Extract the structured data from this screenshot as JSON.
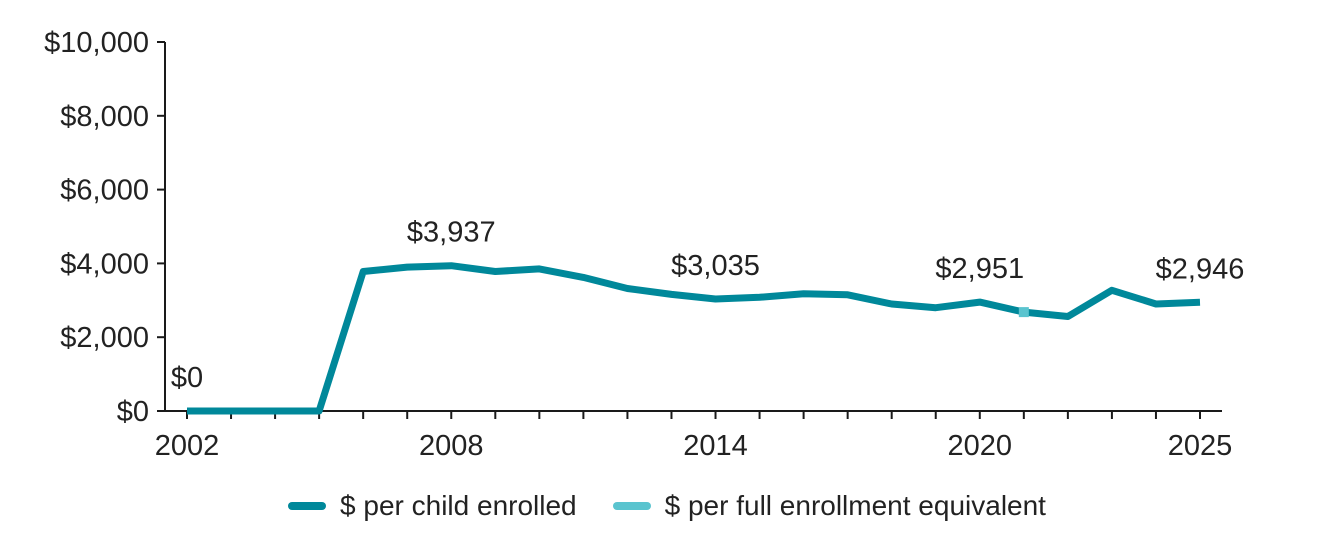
{
  "chart_data": {
    "type": "line",
    "title": "",
    "xlabel": "",
    "ylabel": "",
    "ylim": [
      0,
      10000
    ],
    "xlim": [
      2002,
      2025
    ],
    "y_ticks": [
      {
        "value": 0,
        "label": "$0"
      },
      {
        "value": 2000,
        "label": "$2,000"
      },
      {
        "value": 4000,
        "label": "$4,000"
      },
      {
        "value": 6000,
        "label": "$6,000"
      },
      {
        "value": 8000,
        "label": "$8,000"
      },
      {
        "value": 10000,
        "label": "$10,000"
      }
    ],
    "x_ticks": [
      {
        "value": 2002,
        "label": "2002"
      },
      {
        "value": 2008,
        "label": "2008"
      },
      {
        "value": 2014,
        "label": "2014"
      },
      {
        "value": 2020,
        "label": "2020"
      },
      {
        "value": 2025,
        "label": "2025"
      }
    ],
    "series": [
      {
        "name": "$ per child enrolled",
        "color": "#00889a",
        "x": [
          2002,
          2003,
          2004,
          2005,
          2006,
          2007,
          2008,
          2009,
          2010,
          2011,
          2012,
          2013,
          2014,
          2015,
          2016,
          2017,
          2018,
          2019,
          2020,
          2021,
          2022,
          2023,
          2024,
          2025
        ],
        "values": [
          0,
          0,
          0,
          0,
          3780,
          3900,
          3937,
          3780,
          3850,
          3620,
          3320,
          3160,
          3035,
          3080,
          3180,
          3150,
          2900,
          2800,
          2951,
          2680,
          2560,
          3270,
          2900,
          2946
        ]
      },
      {
        "name": "$ per full enrollment equivalent",
        "color": "#5ac4cf",
        "x": [
          2021
        ],
        "values": [
          2680
        ]
      }
    ],
    "annotations": [
      {
        "x": 2002,
        "value": 0,
        "label": "$0"
      },
      {
        "x": 2008,
        "value": 3937,
        "label": "$3,937"
      },
      {
        "x": 2014,
        "value": 3035,
        "label": "$3,035"
      },
      {
        "x": 2020,
        "value": 2951,
        "label": "$2,951"
      },
      {
        "x": 2025,
        "value": 2946,
        "label": "$2,946"
      }
    ],
    "legend_position": "bottom-center",
    "grid": false
  }
}
